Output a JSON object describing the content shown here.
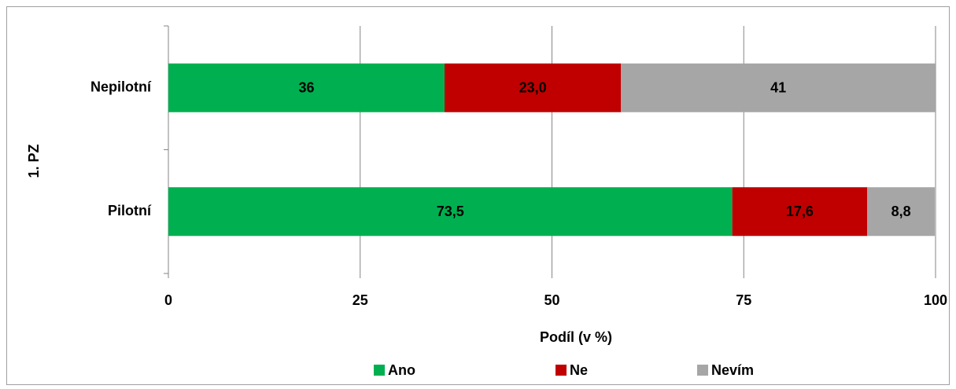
{
  "chart_data": {
    "type": "stacked_barh",
    "x_label": "Podíl (v %)",
    "y_group_label": "1. PZ",
    "categories": [
      "Nepilotní",
      "Pilotní"
    ],
    "series": [
      {
        "name": "Ano",
        "color": "#00b050",
        "values": [
          36,
          73.5
        ],
        "value_labels": [
          "36",
          "73,5"
        ]
      },
      {
        "name": "Ne",
        "color": "#c00000",
        "values": [
          23.0,
          17.6
        ],
        "value_labels": [
          "23,0",
          "17,6"
        ]
      },
      {
        "name": "Nevím",
        "color": "#a6a6a6",
        "values": [
          41,
          8.8
        ],
        "value_labels": [
          "41",
          "8,8"
        ]
      }
    ],
    "xlim": [
      0,
      100
    ],
    "xticks": [
      0,
      25,
      50,
      75,
      100
    ],
    "grid": true,
    "legend": "bottom"
  }
}
